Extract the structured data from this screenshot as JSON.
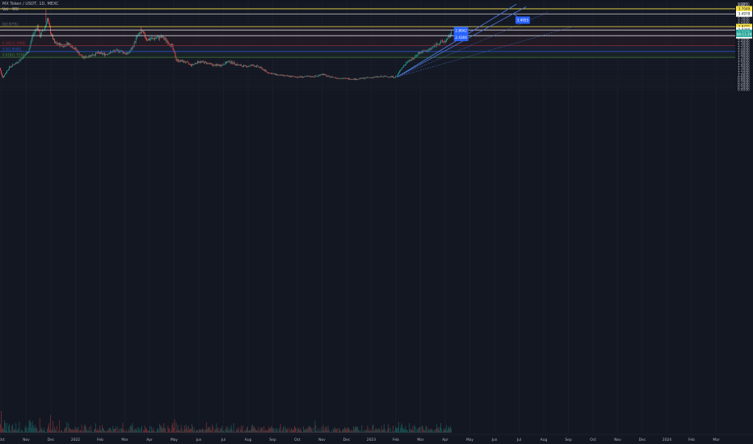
{
  "header": {
    "symbol": "MX Token / USDT, 1D, MEXC",
    "indicator": "Vol · MX"
  },
  "currency": "USDT",
  "colors": {
    "background": "#131722",
    "up": "#26a69a",
    "down": "#ef5350",
    "yellow_line": "#f7e34b",
    "white_line": "#d1d4dc",
    "fib_red": "#8a2e35",
    "fib_blue": "#2a5ad3",
    "fib_green": "#4c8a3a",
    "channel": "#4d7ce0",
    "label_blue": "#2962ff"
  },
  "chart_data": {
    "type": "candlestick",
    "y_axis": {
      "scale": "linear",
      "ylim": [
        0.35,
        4.0
      ],
      "ticks": [
        "3.9000",
        "3.8000",
        "3.7000",
        "3.6000",
        "3.5000",
        "3.4000",
        "3.3000",
        "3.2000",
        "3.1000",
        "3.0000",
        "2.9000",
        "2.8000",
        "2.7000",
        "2.6000",
        "2.5000",
        "2.4000",
        "2.3000",
        "2.2000",
        "2.1000",
        "2.0000",
        "1.9000",
        "1.8000",
        "1.7000",
        "1.6000",
        "1.5000",
        "1.4000",
        "1.3000",
        "1.2000",
        "1.1000",
        "1.0000",
        "0.9000",
        "0.8000",
        "0.7000",
        "0.6000",
        "0.5000",
        "0.4000"
      ]
    },
    "x_axis": {
      "ticks": [
        "Oct",
        "Nov",
        "Dec",
        "2022",
        "Feb",
        "Mar",
        "Apr",
        "May",
        "Jun",
        "Jul",
        "Aug",
        "Sep",
        "Oct",
        "Nov",
        "Dec",
        "2023",
        "Feb",
        "Mar",
        "Apr",
        "May",
        "Jun",
        "Jul",
        "Aug",
        "Sep",
        "Oct",
        "Nov",
        "Dec",
        "2024",
        "Feb",
        "Mar"
      ],
      "tick_months": [
        0,
        1,
        2,
        3,
        4,
        5,
        6,
        7,
        8,
        9,
        10,
        11,
        12,
        13,
        14,
        15,
        16,
        17,
        18,
        19,
        20,
        21,
        22,
        23,
        24,
        25,
        26,
        27,
        28,
        29
      ]
    },
    "price_anchors": [
      [
        -0.2,
        1.6
      ],
      [
        0.05,
        0.9
      ],
      [
        0.3,
        1.3
      ],
      [
        0.6,
        1.5
      ],
      [
        0.9,
        1.75
      ],
      [
        1.1,
        2.0
      ],
      [
        1.25,
        2.6
      ],
      [
        1.45,
        3.0
      ],
      [
        1.55,
        2.6
      ],
      [
        1.75,
        2.95
      ],
      [
        1.85,
        3.3
      ],
      [
        2.0,
        2.7
      ],
      [
        2.15,
        2.3
      ],
      [
        2.5,
        2.2
      ],
      [
        2.7,
        2.3
      ],
      [
        3.0,
        2.05
      ],
      [
        3.3,
        1.7
      ],
      [
        3.6,
        1.8
      ],
      [
        3.9,
        1.9
      ],
      [
        4.2,
        1.85
      ],
      [
        4.5,
        1.95
      ],
      [
        4.8,
        2.0
      ],
      [
        5.1,
        1.85
      ],
      [
        5.3,
        2.1
      ],
      [
        5.5,
        2.6
      ],
      [
        5.7,
        2.75
      ],
      [
        5.9,
        2.45
      ],
      [
        6.2,
        2.5
      ],
      [
        6.5,
        2.55
      ],
      [
        6.7,
        2.4
      ],
      [
        6.9,
        2.2
      ],
      [
        7.1,
        1.6
      ],
      [
        7.4,
        1.55
      ],
      [
        7.7,
        1.4
      ],
      [
        8.0,
        1.55
      ],
      [
        8.3,
        1.5
      ],
      [
        8.6,
        1.4
      ],
      [
        8.9,
        1.4
      ],
      [
        9.2,
        1.55
      ],
      [
        9.4,
        1.5
      ],
      [
        9.6,
        1.4
      ],
      [
        9.9,
        1.35
      ],
      [
        10.2,
        1.4
      ],
      [
        10.5,
        1.3
      ],
      [
        10.8,
        1.1
      ],
      [
        11.2,
        1.0
      ],
      [
        11.6,
        0.95
      ],
      [
        12.0,
        0.92
      ],
      [
        12.4,
        0.93
      ],
      [
        12.8,
        0.95
      ],
      [
        13.0,
        1.05
      ],
      [
        13.2,
        0.95
      ],
      [
        13.6,
        0.88
      ],
      [
        14.0,
        0.85
      ],
      [
        14.4,
        0.83
      ],
      [
        14.8,
        0.88
      ],
      [
        15.2,
        0.92
      ],
      [
        15.6,
        0.94
      ],
      [
        16.0,
        0.92
      ],
      [
        16.1,
        1.05
      ],
      [
        16.2,
        1.25
      ],
      [
        16.35,
        1.4
      ],
      [
        16.5,
        1.6
      ],
      [
        16.7,
        1.65
      ],
      [
        16.9,
        1.9
      ],
      [
        17.1,
        1.95
      ],
      [
        17.3,
        2.0
      ],
      [
        17.5,
        2.15
      ],
      [
        17.7,
        2.3
      ],
      [
        17.9,
        2.35
      ],
      [
        18.1,
        2.45
      ],
      [
        18.25,
        2.72
      ]
    ],
    "notable_highs": [
      [
        1.8,
        3.68
      ],
      [
        5.65,
        2.96
      ]
    ],
    "notable_lows": [
      [
        0.05,
        0.88
      ],
      [
        14.4,
        0.81
      ]
    ],
    "volume_scale": [
      0.02,
      0.55
    ],
    "horizontal_levels": [
      {
        "price": 3.7049,
        "label": "3.7049",
        "kind": "yellow"
      },
      {
        "price": 3.4978,
        "label": "3.4978",
        "kind": "white"
      },
      {
        "price": 2.9771,
        "label": "2.9771",
        "kind": "yellow"
      },
      {
        "price": 2.8389,
        "label": "2.8389",
        "kind": "white"
      },
      {
        "price": 2.6078,
        "label": "2.6078",
        "kind": "white"
      }
    ],
    "fib_levels": [
      {
        "price": 2.9771,
        "label": "0(2.9771)",
        "kind": "gray"
      },
      {
        "price": 2.1968,
        "label": "0.382(2.1968)",
        "kind": "red"
      },
      {
        "price": 1.9591,
        "label": "0.5(1.9591)",
        "kind": "blue"
      },
      {
        "price": 1.7216,
        "label": "0.618(1.7216)",
        "kind": "green"
      }
    ],
    "price_badges": [
      {
        "label": "2.7478",
        "price": 2.74,
        "fill": "up"
      },
      {
        "label": "08:11:29",
        "price": 2.67,
        "fill": "up"
      }
    ],
    "price_flags": [
      {
        "label": "3.4955",
        "m": 20.85,
        "price": 3.24
      },
      {
        "label": "2.8042",
        "m": 18.35,
        "price": 2.82
      },
      {
        "label": "2.4306",
        "m": 18.35,
        "price": 2.53
      }
    ]
  }
}
